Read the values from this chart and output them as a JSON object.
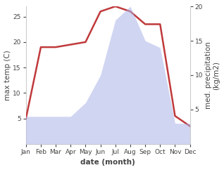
{
  "months": [
    1,
    2,
    3,
    4,
    5,
    6,
    7,
    8,
    9,
    10,
    11,
    12
  ],
  "month_labels": [
    "Jan",
    "Feb",
    "Mar",
    "Apr",
    "May",
    "Jun",
    "Jul",
    "Aug",
    "Sep",
    "Oct",
    "Nov",
    "Dec"
  ],
  "temperature": [
    5,
    19,
    19,
    19.5,
    20,
    26,
    27,
    26,
    23.5,
    23.5,
    5.5,
    3.5
  ],
  "precipitation": [
    4,
    4,
    4,
    4,
    6,
    10,
    18,
    20,
    15,
    14,
    3,
    3
  ],
  "temp_color": "#c0393b",
  "precip_color": "#aab4e8",
  "precip_fill_alpha": 0.55,
  "temp_linewidth": 1.8,
  "ylim_temp": [
    0,
    27
  ],
  "ylim_precip": [
    0,
    20
  ],
  "yticks_temp": [
    5,
    10,
    15,
    20,
    25
  ],
  "yticks_precip": [
    5,
    10,
    15,
    20
  ],
  "ylabel_left": "max temp (C)",
  "ylabel_right": "med. precipitation\n(kg/m2)",
  "xlabel": "date (month)",
  "background_color": "#ffffff",
  "spine_color": "#cccccc",
  "tick_color": "#444444",
  "label_fontsize": 7.5,
  "tick_fontsize": 6.5
}
